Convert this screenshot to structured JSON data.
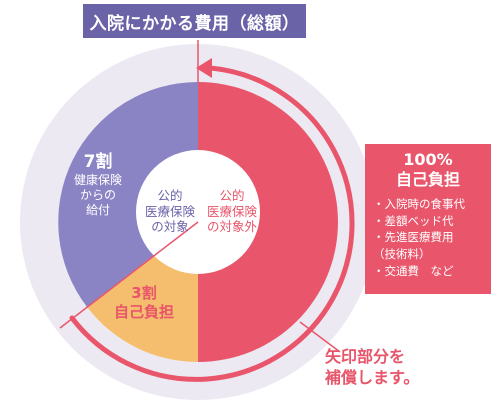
{
  "title": "入院にかかる費用（総額）",
  "segments": {
    "insurance": {
      "ratio": "7割",
      "lines": [
        "健康保険",
        "からの",
        "給付"
      ]
    },
    "copay": {
      "ratio": "3割",
      "label": "自己負担"
    },
    "covered": [
      "公的",
      "医療保険",
      "の対象"
    ],
    "not_covered": [
      "公的",
      "医療保険",
      "の対象外"
    ]
  },
  "full_pay": {
    "percent": "100%",
    "label": "自己負担",
    "items": [
      "・入院時の食事代",
      "・差額ベッド代",
      "・先進医療費用",
      "（技術料）",
      "・交通費　など"
    ]
  },
  "note": [
    "矢印部分を",
    "補償します。"
  ],
  "colors": {
    "purple": "#8b84c4",
    "pink": "#e9566b",
    "orange": "#f5be6e",
    "title_bg": "#6b63a8",
    "ring": "#ece9f2"
  }
}
